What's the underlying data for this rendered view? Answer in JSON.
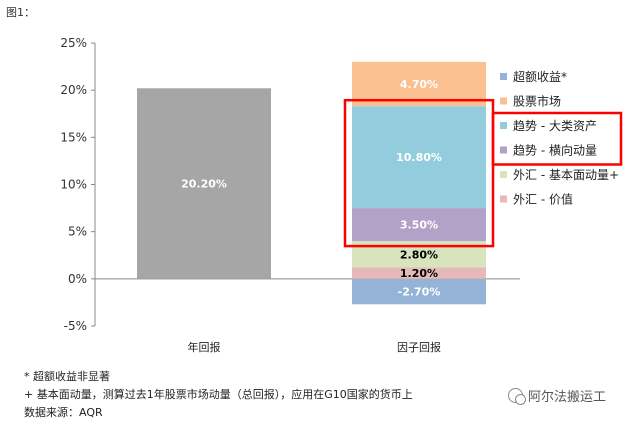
{
  "figure_label": "图1：",
  "chart_data": {
    "type": "bar",
    "stacked": true,
    "categories": [
      "年回报",
      "因子回报"
    ],
    "ylim": [
      -5,
      25
    ],
    "yticks": [
      "-5%",
      "0%",
      "5%",
      "10%",
      "15%",
      "20%",
      "25%"
    ],
    "ytick_values": [
      -5,
      0,
      5,
      10,
      15,
      20,
      25
    ],
    "grid": false,
    "legend_position": "right",
    "series": [
      {
        "name": "年回报",
        "color": "#a6a6a6",
        "values": [
          20.2,
          null
        ],
        "labels": [
          "20.20%",
          null
        ],
        "label_color": "#ffffff"
      },
      {
        "name": "超额收益*",
        "color": "#95b3d7",
        "values": [
          null,
          -2.7
        ],
        "labels": [
          null,
          "-2.70%"
        ],
        "label_color": "#ffffff"
      },
      {
        "name": "外汇 - 价值",
        "color": "#e6b9b8",
        "values": [
          null,
          1.2
        ],
        "labels": [
          null,
          "1.20%"
        ],
        "label_color": "#000000"
      },
      {
        "name": "外汇 - 基本面动量+",
        "color": "#d7e4bd",
        "values": [
          null,
          2.8
        ],
        "labels": [
          null,
          "2.80%"
        ],
        "label_color": "#000000"
      },
      {
        "name": "趋势 - 横向动量",
        "color": "#b3a2c7",
        "values": [
          null,
          3.5
        ],
        "labels": [
          null,
          "3.50%"
        ],
        "label_color": "#ffffff"
      },
      {
        "name": "趋势 - 大类资产",
        "color": "#93cddd",
        "values": [
          null,
          10.8
        ],
        "labels": [
          null,
          "10.80%"
        ],
        "label_color": "#ffffff"
      },
      {
        "name": "股票市场",
        "color": "#fac090",
        "values": [
          null,
          4.7
        ],
        "labels": [
          null,
          "4.70%"
        ],
        "label_color": "#ffffff"
      }
    ],
    "legend": [
      {
        "name": "超额收益*",
        "color": "#95b3d7"
      },
      {
        "name": "股票市场",
        "color": "#fac090"
      },
      {
        "name": "趋势 - 大类资产",
        "color": "#93cddd"
      },
      {
        "name": "趋势 - 横向动量",
        "color": "#b3a2c7"
      },
      {
        "name": "外汇 - 基本面动量+",
        "color": "#d7e4bd"
      },
      {
        "name": "外汇 - 价值",
        "color": "#e6b9b8"
      }
    ],
    "highlight_color": "#ff0000"
  },
  "footnotes": {
    "line1": "* 超额收益非显著",
    "line2": "+ 基本面动量，测算过去1年股票市场动量（总回报），应用在G10国家的货币上",
    "line3": "数据来源：AQR"
  },
  "watermark": {
    "text": "阿尔法搬运工",
    "icon": "wechat-icon"
  }
}
